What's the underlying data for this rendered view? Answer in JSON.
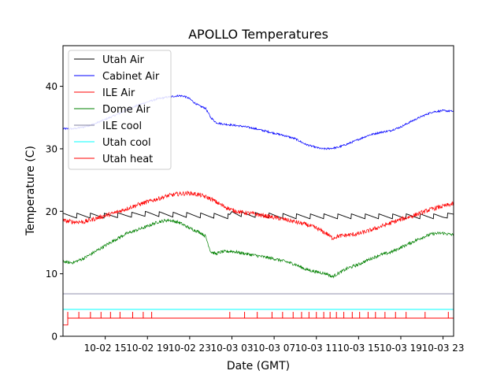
{
  "chart_data": {
    "type": "line",
    "title": "APOLLO Temperatures",
    "xlabel": "Date (GMT)",
    "ylabel": "Temperature (C)",
    "xlim": [
      0,
      37
    ],
    "ylim": [
      0,
      46.5
    ],
    "x_unit": "hours since 10-02 12:00 GMT",
    "yticks": [
      0,
      10,
      20,
      30,
      40
    ],
    "xticks": [
      {
        "label": "10-02 15",
        "x": 4.0
      },
      {
        "label": "10-02 19",
        "x": 8.0
      },
      {
        "label": "10-02 23",
        "x": 12.0
      },
      {
        "label": "10-03 03",
        "x": 16.0
      },
      {
        "label": "10-03 07",
        "x": 20.0
      },
      {
        "label": "10-03 11",
        "x": 24.0
      },
      {
        "label": "10-03 15",
        "x": 28.0
      },
      {
        "label": "10-03 19",
        "x": 32.0
      },
      {
        "label": "10-03 23",
        "x": 36.0
      }
    ],
    "legend_position": "top-left",
    "series": [
      {
        "name": "Utah Air",
        "color": "#000000",
        "sawtooth": 0.8,
        "sawtooth_period": 1.3,
        "x": [
          0,
          2,
          4,
          6,
          8,
          10,
          12,
          14,
          15.8,
          16,
          17,
          20,
          22,
          24,
          26,
          28,
          30,
          32,
          34,
          36,
          37
        ],
        "y": [
          19.3,
          19.3,
          19.3,
          19.4,
          19.6,
          19.5,
          19.4,
          19.3,
          19.2,
          19.8,
          19.5,
          19.3,
          19.2,
          19.2,
          19.2,
          19.2,
          19.2,
          19.2,
          19.2,
          19.2,
          19.5
        ]
      },
      {
        "name": "Cabinet Air",
        "color": "#0000ff",
        "noise": 0.15,
        "x": [
          0,
          1,
          2,
          3,
          4,
          5,
          6,
          7,
          8,
          9,
          10,
          10.5,
          11,
          11.5,
          12,
          12.5,
          13,
          13.5,
          14,
          14.5,
          15,
          16,
          17,
          18,
          19,
          20,
          21,
          22,
          23,
          24,
          24.5,
          25,
          26,
          27,
          28,
          29,
          30,
          31,
          32,
          33,
          34,
          35,
          36,
          37
        ],
        "y": [
          33.2,
          33.2,
          33.5,
          34.0,
          34.7,
          35.4,
          36.2,
          36.9,
          37.5,
          38.0,
          38.3,
          38.4,
          38.5,
          38.4,
          38.0,
          37.3,
          36.8,
          36.5,
          35.0,
          34.2,
          34.0,
          33.8,
          33.6,
          33.3,
          32.9,
          32.5,
          32.1,
          31.6,
          30.7,
          30.2,
          30.0,
          30.0,
          30.2,
          30.8,
          31.5,
          32.2,
          32.6,
          32.9,
          33.5,
          34.4,
          35.2,
          35.9,
          36.1,
          36.0
        ]
      },
      {
        "name": "ILE Air",
        "color": "#ff0000",
        "noise": 0.35,
        "x": [
          0,
          1,
          2,
          3,
          4,
          5,
          6,
          7,
          8,
          9,
          10,
          11,
          12,
          13,
          14,
          15,
          16,
          17,
          18,
          19,
          20,
          21,
          22,
          23,
          24,
          25,
          25.5,
          26,
          27,
          28,
          29,
          30,
          31,
          32,
          33,
          34,
          35,
          36,
          37
        ],
        "y": [
          18.5,
          18.3,
          18.3,
          18.8,
          19.3,
          19.8,
          20.4,
          21.0,
          21.5,
          22.0,
          22.5,
          22.8,
          22.9,
          22.6,
          22.0,
          21.0,
          20.2,
          19.8,
          19.6,
          19.3,
          19.0,
          18.7,
          18.3,
          17.9,
          17.3,
          16.4,
          15.7,
          16.0,
          16.2,
          16.4,
          16.9,
          17.5,
          18.1,
          18.7,
          19.2,
          19.8,
          20.4,
          20.8,
          21.2
        ]
      },
      {
        "name": "Dome Air",
        "color": "#008000",
        "noise": 0.25,
        "x": [
          0,
          0.5,
          1,
          2,
          3,
          4,
          5,
          6,
          7,
          8,
          9,
          10,
          11,
          12,
          13,
          13.5,
          14,
          14.5,
          15,
          16,
          17,
          18,
          19,
          20,
          21,
          22,
          23,
          24,
          25,
          25.5,
          26,
          27,
          28,
          29,
          30,
          31,
          32,
          33,
          34,
          35,
          36,
          37
        ],
        "y": [
          12.0,
          11.8,
          11.8,
          12.5,
          13.5,
          14.5,
          15.5,
          16.4,
          17.0,
          17.6,
          18.3,
          18.6,
          18.2,
          17.3,
          16.6,
          16.0,
          13.5,
          13.2,
          13.5,
          13.6,
          13.3,
          13.0,
          12.7,
          12.4,
          12.0,
          11.5,
          10.7,
          10.3,
          10.0,
          9.5,
          10.0,
          10.9,
          11.5,
          12.3,
          13.0,
          13.4,
          14.2,
          15.0,
          15.8,
          16.4,
          16.5,
          16.2
        ]
      },
      {
        "name": "ILE cool",
        "color": "#8080a0",
        "x": [
          0,
          37
        ],
        "y": [
          6.8,
          6.8
        ]
      },
      {
        "name": "Utah cool",
        "color": "#00ffff",
        "x": [
          0,
          37
        ],
        "y": [
          4.3,
          4.3
        ]
      },
      {
        "name": "Utah heat",
        "color": "#ff0000",
        "x": [
          0,
          0.45,
          0.45,
          37
        ],
        "y": [
          1.8,
          1.8,
          2.9,
          2.9
        ],
        "spikes_top": 3.9,
        "spikes_x": [
          0.45,
          1.5,
          2.6,
          3.6,
          4.5,
          5.4,
          6.6,
          7.6,
          8.4,
          15.8,
          17.2,
          18.4,
          19.8,
          20.8,
          21.8,
          22.6,
          23.3,
          24.0,
          24.7,
          25.3,
          25.9,
          26.6,
          27.4,
          28.1,
          28.9,
          29.6,
          30.5,
          31.5,
          32.5,
          34.3,
          36.5
        ]
      }
    ]
  }
}
